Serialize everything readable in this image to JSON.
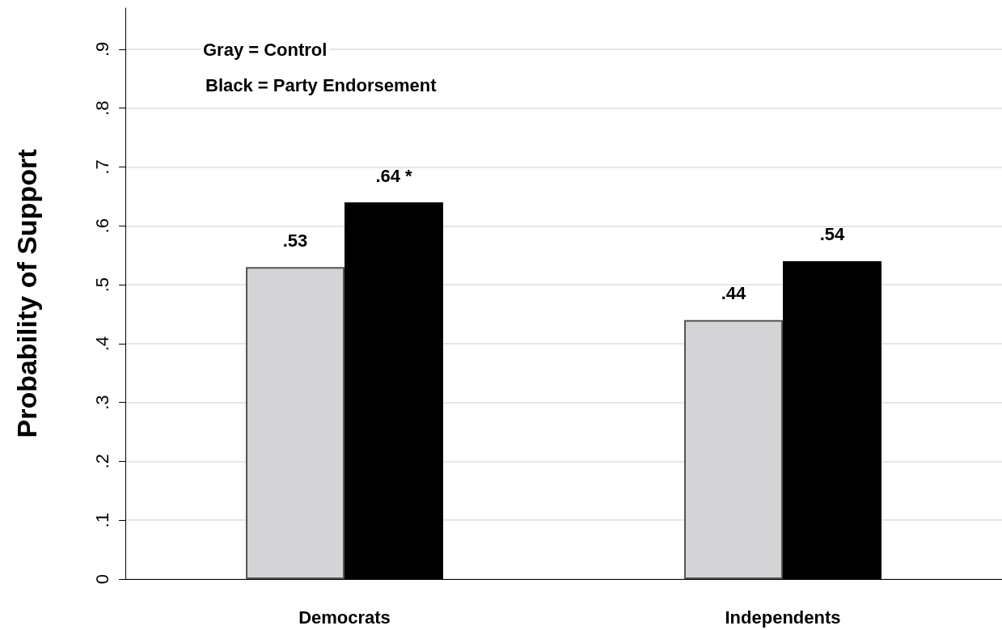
{
  "chart_data": {
    "type": "bar",
    "ylabel": "Probability of Support",
    "categories": [
      "Democrats",
      "Independents"
    ],
    "series": [
      {
        "color": "#d4d4d6",
        "values": [
          0.53,
          0.44
        ],
        "value_labels": [
          ".53",
          ".44"
        ]
      },
      {
        "color": "#000000",
        "values": [
          0.64,
          0.54
        ],
        "value_labels": [
          ".64 *",
          ".54"
        ]
      }
    ],
    "ylim": [
      0,
      0.97
    ],
    "yticks": [
      0,
      {
        "value": 0.1,
        "label": ".1"
      },
      {
        "value": 0.2,
        "label": ".2"
      },
      {
        "value": 0.3,
        "label": ".3"
      },
      {
        "value": 0.4,
        "label": ".4"
      },
      {
        "value": 0.5,
        "label": ".5"
      },
      {
        "value": 0.6,
        "label": ".6"
      },
      {
        "value": 0.7,
        "label": ".7"
      },
      {
        "value": 0.8,
        "label": ".8"
      },
      {
        "value": 0.9,
        "label": ".9"
      }
    ],
    "grid": "y",
    "annotations": [
      "Gray = Control",
      "Black = Party Endorsement"
    ]
  }
}
